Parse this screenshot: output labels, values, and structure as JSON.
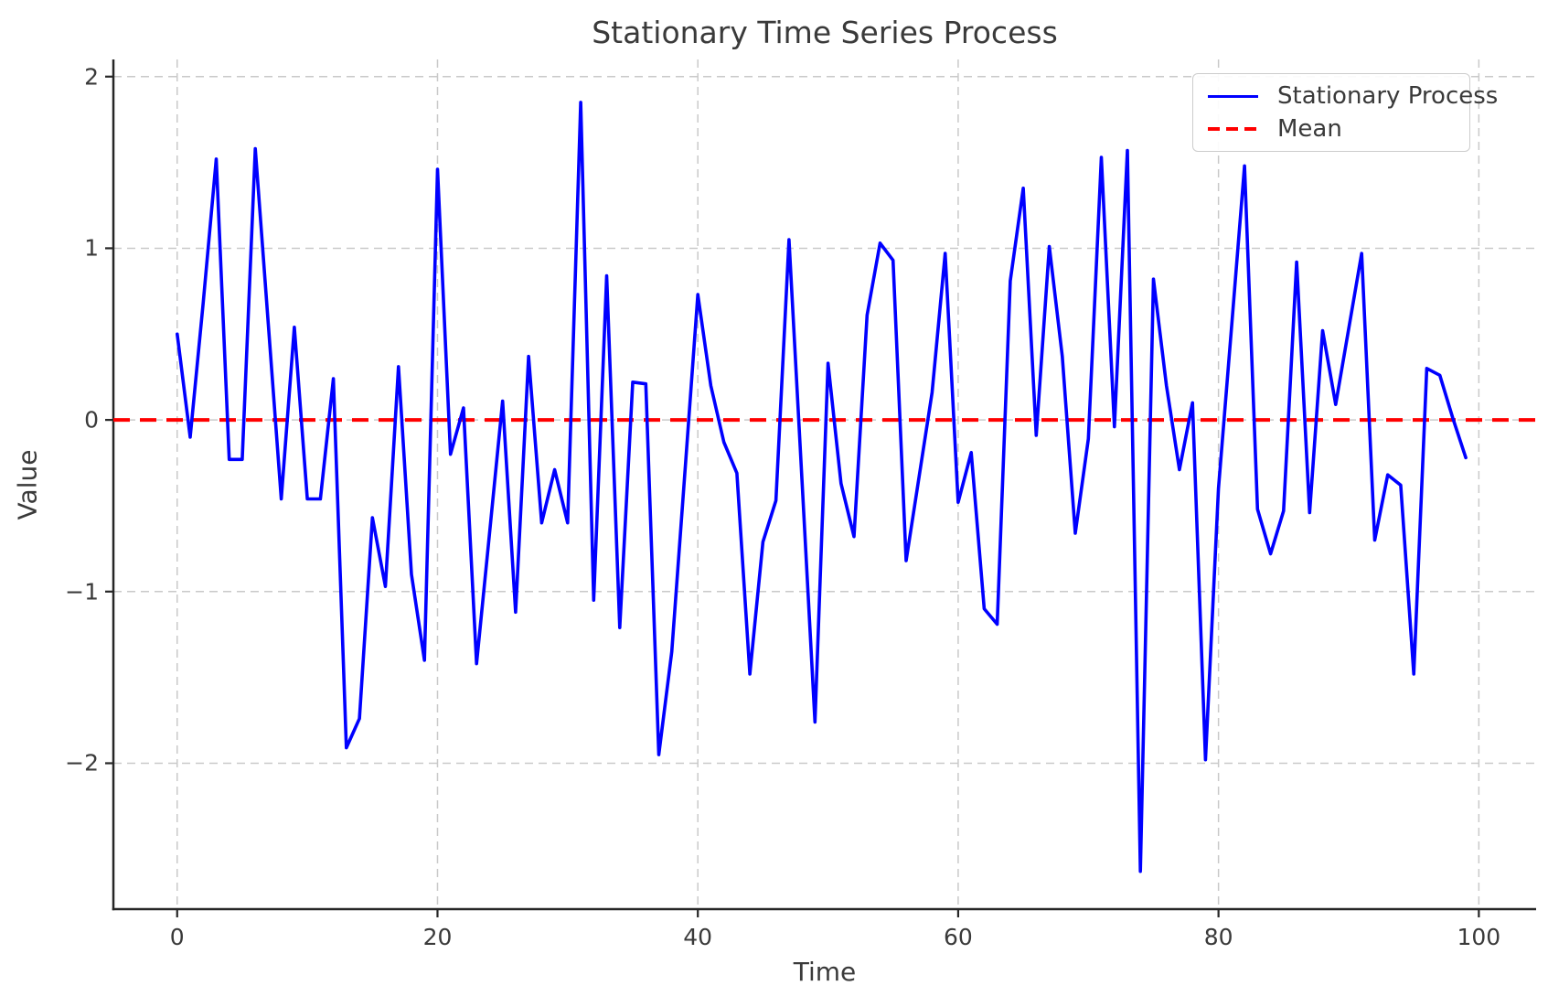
{
  "chart_data": {
    "type": "line",
    "title": "Stationary Time Series Process",
    "xlabel": "Time",
    "ylabel": "Value",
    "x_ticks": [
      0,
      20,
      40,
      60,
      80,
      100
    ],
    "x_tick_labels": [
      "0",
      "20",
      "40",
      "60",
      "80",
      "100"
    ],
    "y_ticks": [
      2,
      1,
      0,
      -1,
      -2
    ],
    "y_tick_labels": [
      "2",
      "1",
      "0",
      "−1",
      "−2"
    ],
    "xlim": [
      -4.9,
      104.4
    ],
    "ylim": [
      -2.85,
      2.1
    ],
    "grid": true,
    "grid_style": "dashed",
    "legend_position": "upper right",
    "legend": [
      {
        "label": "Stationary Process",
        "color": "#0000ff",
        "style": "solid"
      },
      {
        "label": "Mean",
        "color": "#ff0000",
        "style": "dashed"
      }
    ],
    "mean_line": {
      "value": 0,
      "color": "#ff0000"
    },
    "series": [
      {
        "name": "Stationary Process",
        "color": "#0000ff",
        "x_start": 0,
        "x_step": 1,
        "values": [
          0.5,
          -0.1,
          0.68,
          1.52,
          -0.23,
          -0.23,
          1.58,
          0.56,
          -0.46,
          0.54,
          -0.46,
          -0.46,
          0.24,
          -1.91,
          -1.74,
          -0.57,
          -0.97,
          0.31,
          -0.9,
          -1.4,
          1.46,
          -0.2,
          0.07,
          -1.42,
          -0.66,
          0.11,
          -1.12,
          0.37,
          -0.6,
          -0.29,
          -0.6,
          1.85,
          -1.05,
          0.84,
          -1.21,
          0.22,
          0.21,
          -1.95,
          -1.35,
          -0.31,
          0.73,
          0.2,
          -0.13,
          -0.31,
          -1.48,
          -0.71,
          -0.47,
          1.05,
          -0.35,
          -1.76,
          0.33,
          -0.37,
          -0.68,
          0.61,
          1.03,
          0.93,
          -0.82,
          -0.33,
          0.16,
          0.97,
          -0.48,
          -0.19,
          -1.1,
          -1.19,
          0.81,
          1.35,
          -0.09,
          1.01,
          0.37,
          -0.66,
          -0.11,
          1.53,
          -0.04,
          1.57,
          -2.63,
          0.82,
          0.2,
          -0.29,
          0.1,
          -1.98,
          -0.4,
          0.54,
          1.48,
          -0.52,
          -0.78,
          -0.53,
          0.92,
          -0.54,
          0.52,
          0.09,
          0.53,
          0.97,
          -0.7,
          -0.32,
          -0.38,
          -1.48,
          0.3,
          0.26,
          0.01,
          -0.22
        ]
      }
    ],
    "colors": {
      "series": "#0000ff",
      "mean": "#ff0000",
      "grid": "#c9c9c9",
      "spine": "#262626",
      "text": "#3a3a3a",
      "background": "#ffffff"
    }
  }
}
